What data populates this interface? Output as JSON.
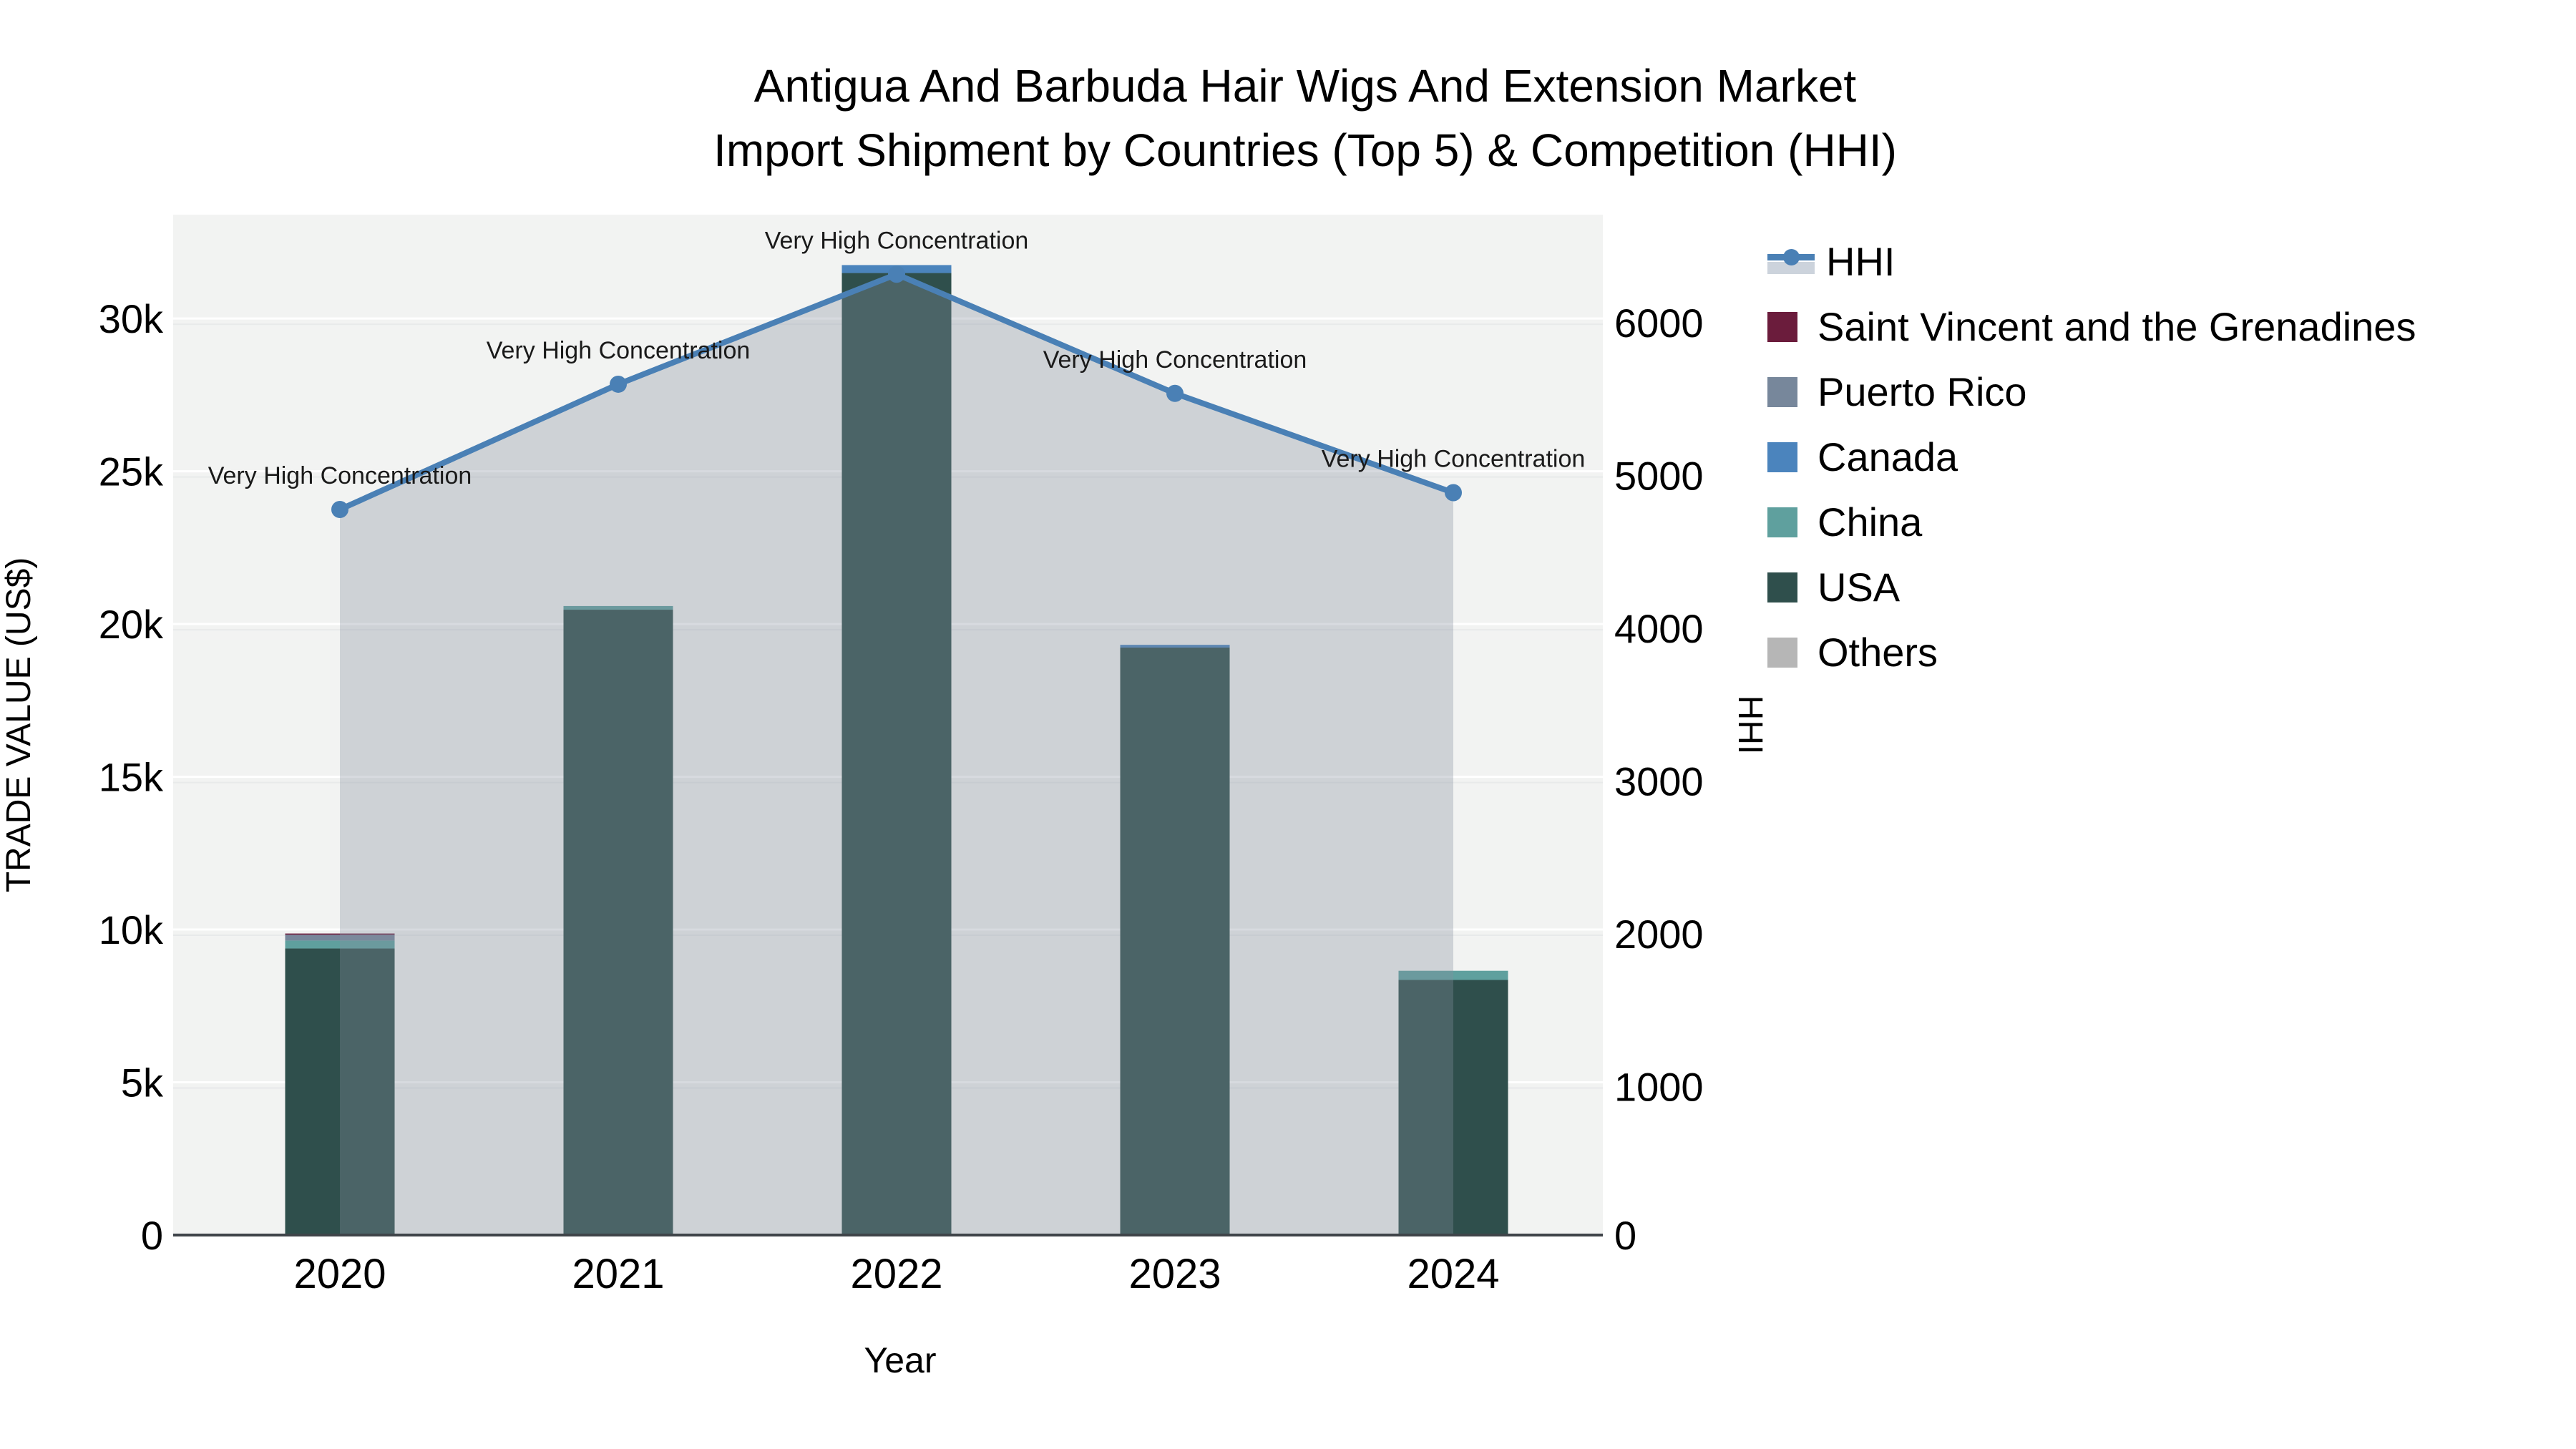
{
  "title": {
    "line1": "Antigua And Barbuda Hair Wigs And Extension Market",
    "line2": "Import Shipment by Countries (Top 5) & Competition (HHI)"
  },
  "colors": {
    "plot_bg": "#f2f3f2",
    "figure_bg": "#ffffff",
    "grid_primary": "#ffffff",
    "grid_secondary": "#e8eaea",
    "baseline": "#3f4449",
    "text": "#000000",
    "annotation_text": "#1a1a1a",
    "hhi_line": "#4a80b5",
    "hhi_area_fill": "rgba(133,144,158,0.33)"
  },
  "chart_data": {
    "type": "bar+line",
    "description": "Stacked bars (trade value US$, left axis) by origin country with HHI concentration line (right axis)",
    "x": [
      "2020",
      "2021",
      "2022",
      "2023",
      "2024"
    ],
    "x_title": "Year",
    "y_left": {
      "title": "TRADE VALUE (US$)",
      "ticks": [
        0,
        5000,
        10000,
        15000,
        20000,
        25000,
        30000
      ],
      "tick_labels": [
        "0",
        "5k",
        "10k",
        "15k",
        "20k",
        "25k",
        "30k"
      ],
      "max": 33400
    },
    "y_right": {
      "title": "HHI",
      "ticks": [
        0,
        1000,
        2000,
        3000,
        4000,
        5000,
        6000
      ],
      "tick_labels": [
        "0",
        "1000",
        "2000",
        "3000",
        "4000",
        "5000",
        "6000"
      ],
      "max": 6680
    },
    "series": [
      {
        "name": "USA",
        "color": "#2f4f4c",
        "values": [
          9380,
          20470,
          31490,
          19230,
          8350
        ]
      },
      {
        "name": "China",
        "color": "#5fa09e",
        "values": [
          260,
          120,
          0,
          0,
          300
        ]
      },
      {
        "name": "Canada",
        "color": "#4b84bd",
        "values": [
          0,
          0,
          260,
          90,
          0
        ]
      },
      {
        "name": "Puerto Rico",
        "color": "#77879b",
        "values": [
          190,
          0,
          0,
          0,
          0
        ]
      },
      {
        "name": "Saint Vincent and the Grenadines",
        "color": "#6b1c3c",
        "values": [
          40,
          0,
          0,
          0,
          0
        ]
      },
      {
        "name": "Others",
        "color": "#b6b6b6",
        "values": [
          0,
          0,
          0,
          0,
          0
        ]
      }
    ],
    "bar_totals": [
      9870,
      20590,
      31750,
      19320,
      8650
    ],
    "line": {
      "name": "HHI",
      "color": "#4a80b5",
      "values": [
        4750,
        5570,
        6290,
        5510,
        4860
      ],
      "annotations": [
        "Very High Concentration",
        "Very High Concentration",
        "Very High Concentration",
        "Very High Concentration",
        "Very High Concentration"
      ]
    },
    "grid": true,
    "legend_position": "right"
  },
  "legend": {
    "items": [
      {
        "label": "HHI",
        "color": "#4a80b5",
        "type": "line",
        "band_color": "#ccd3dc"
      },
      {
        "label": "Saint Vincent and the Grenadines",
        "color": "#6b1c3c",
        "type": "swatch"
      },
      {
        "label": "Puerto Rico",
        "color": "#77879b",
        "type": "swatch"
      },
      {
        "label": "Canada",
        "color": "#4b84bd",
        "type": "swatch"
      },
      {
        "label": "China",
        "color": "#5fa09e",
        "type": "swatch"
      },
      {
        "label": "USA",
        "color": "#2f4f4c",
        "type": "swatch"
      },
      {
        "label": "Others",
        "color": "#b6b6b6",
        "type": "swatch"
      }
    ]
  }
}
